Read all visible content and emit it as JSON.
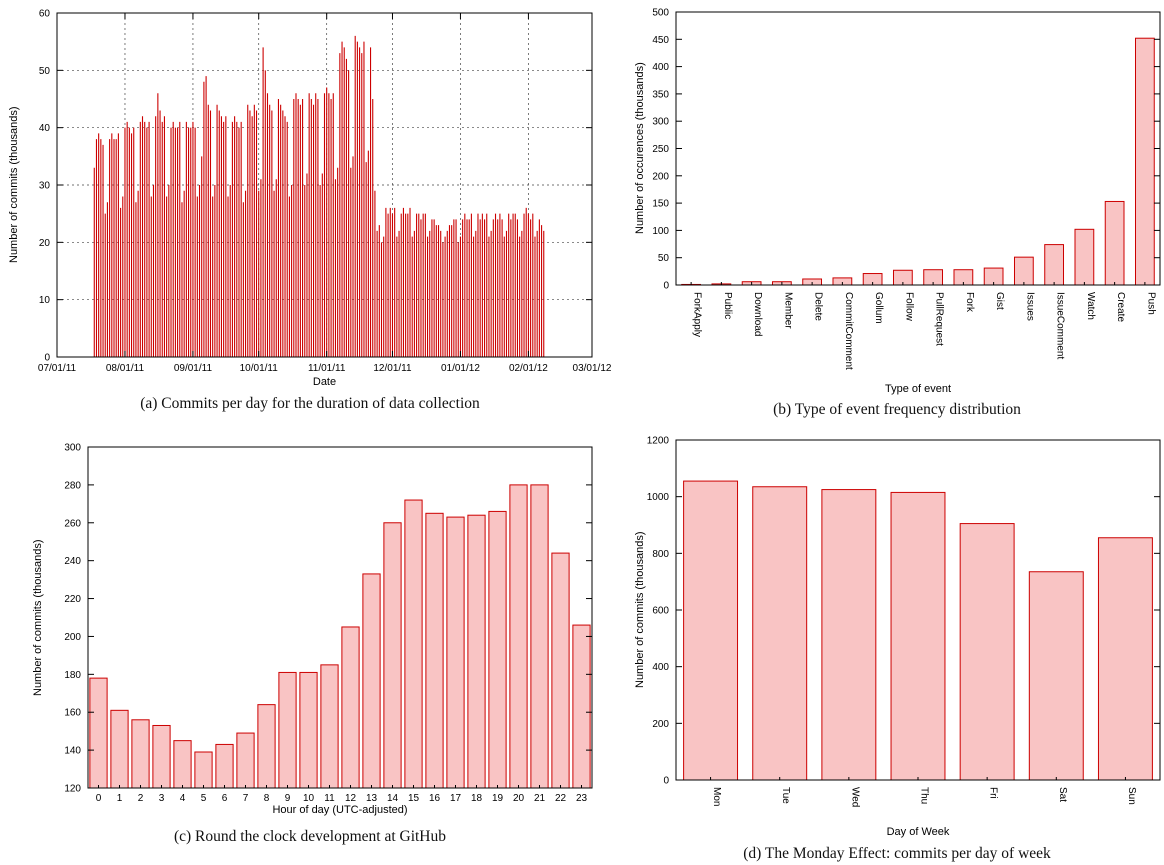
{
  "page": {
    "background": "#ffffff",
    "accent_red": "#cc0000",
    "bar_fill": "#f9c4c4"
  },
  "chart_data": [
    {
      "id": "a",
      "type": "bar",
      "style": "impulse",
      "caption": "(a) Commits per day for the duration of data collection",
      "xlabel": "Date",
      "ylabel": "Number of commits (thousands)",
      "ylim": [
        0,
        60
      ],
      "ytick_step": 10,
      "xlim": [
        0,
        244
      ],
      "xticks": {
        "positions": [
          0,
          31,
          62,
          92,
          123,
          153,
          184,
          215,
          244
        ],
        "labels": [
          "07/01/11",
          "08/01/11",
          "09/01/11",
          "10/01/11",
          "11/01/11",
          "12/01/11",
          "01/01/12",
          "02/01/12",
          "03/01/12"
        ]
      },
      "grid": true,
      "series_start_x": 17,
      "color": "#cc0000",
      "values": [
        33,
        38,
        39,
        38,
        37,
        25,
        27,
        38,
        39,
        38,
        38,
        39,
        26,
        28,
        40,
        41,
        40,
        39,
        40,
        27,
        29,
        41,
        42,
        41,
        40,
        41,
        28,
        30,
        42,
        46,
        43,
        41,
        42,
        28,
        30,
        40,
        41,
        40,
        40,
        41,
        27,
        29,
        41,
        40,
        40,
        41,
        40,
        28,
        30,
        35,
        48,
        49,
        44,
        43,
        28,
        30,
        44,
        43,
        42,
        41,
        42,
        28,
        30,
        41,
        42,
        41,
        40,
        41,
        27,
        29,
        44,
        43,
        42,
        44,
        43,
        29,
        31,
        54,
        50,
        46,
        44,
        43,
        29,
        31,
        45,
        44,
        43,
        42,
        41,
        28,
        30,
        45,
        46,
        45,
        44,
        45,
        30,
        32,
        46,
        45,
        44,
        46,
        45,
        30,
        32,
        46,
        47,
        46,
        45,
        46,
        31,
        33,
        53,
        55,
        54,
        52,
        50,
        33,
        35,
        56,
        55,
        54,
        53,
        55,
        34,
        36,
        54,
        45,
        29,
        22,
        23,
        20,
        21,
        26,
        25,
        26,
        25,
        26,
        21,
        22,
        25,
        26,
        25,
        25,
        26,
        21,
        22,
        25,
        25,
        24,
        25,
        25,
        21,
        22,
        24,
        24,
        23,
        23,
        22,
        20,
        21,
        22,
        23,
        23,
        24,
        24,
        20,
        21,
        24,
        25,
        24,
        24,
        25,
        21,
        22,
        25,
        24,
        25,
        24,
        25,
        21,
        22,
        24,
        25,
        24,
        25,
        24,
        21,
        22,
        25,
        24,
        25,
        25,
        24,
        21,
        22,
        25,
        26,
        25,
        24,
        25,
        21,
        22,
        24,
        23,
        22
      ]
    },
    {
      "id": "b",
      "type": "bar",
      "caption": "(b) Type of event frequency distribution",
      "xlabel": "Type of event",
      "ylabel": "Number of occurences (thousands)",
      "ylim": [
        0,
        500
      ],
      "ytick_step": 50,
      "grid": false,
      "rotated_labels": true,
      "bar_frac": 0.62,
      "fill": "#f9c4c4",
      "stroke": "#cc0000",
      "categories": [
        "ForkApply",
        "Public",
        "Download",
        "Member",
        "Delete",
        "CommitComment",
        "Gollum",
        "Follow",
        "PullRequest",
        "Fork",
        "Gist",
        "Issues",
        "IssueComment",
        "Watch",
        "Create",
        "Push"
      ],
      "values": [
        1,
        2,
        6,
        6,
        11,
        13,
        21,
        27,
        28,
        28,
        31,
        51,
        74,
        102,
        153,
        452
      ]
    },
    {
      "id": "c",
      "type": "bar",
      "caption": "(c) Round the clock development at GitHub",
      "xlabel": "Hour of day (UTC-adjusted)",
      "ylabel": "Number of commits (thousands)",
      "ylim": [
        120,
        300
      ],
      "ytick_step": 20,
      "grid": false,
      "rotated_labels": false,
      "bar_frac": 0.82,
      "fill": "#f9c4c4",
      "stroke": "#cc0000",
      "categories": [
        "0",
        "1",
        "2",
        "3",
        "4",
        "5",
        "6",
        "7",
        "8",
        "9",
        "10",
        "11",
        "12",
        "13",
        "14",
        "15",
        "16",
        "17",
        "18",
        "19",
        "20",
        "21",
        "22",
        "23"
      ],
      "values": [
        178,
        161,
        156,
        153,
        145,
        139,
        143,
        149,
        164,
        181,
        181,
        185,
        205,
        233,
        260,
        272,
        265,
        263,
        264,
        266,
        280,
        280,
        244,
        206
      ]
    },
    {
      "id": "d",
      "type": "bar",
      "caption": "(d) The Monday Effect: commits per day of week",
      "xlabel": "Day of Week",
      "ylabel": "Number of commits (thousands)",
      "ylim": [
        0,
        1200
      ],
      "ytick_step": 200,
      "grid": false,
      "rotated_labels": true,
      "bar_frac": 0.78,
      "fill": "#f9c4c4",
      "stroke": "#cc0000",
      "categories": [
        "Mon",
        "Tue",
        "Wed",
        "Thu",
        "Fri",
        "Sat",
        "Sun"
      ],
      "values": [
        1055,
        1035,
        1025,
        1015,
        905,
        735,
        855
      ]
    }
  ]
}
